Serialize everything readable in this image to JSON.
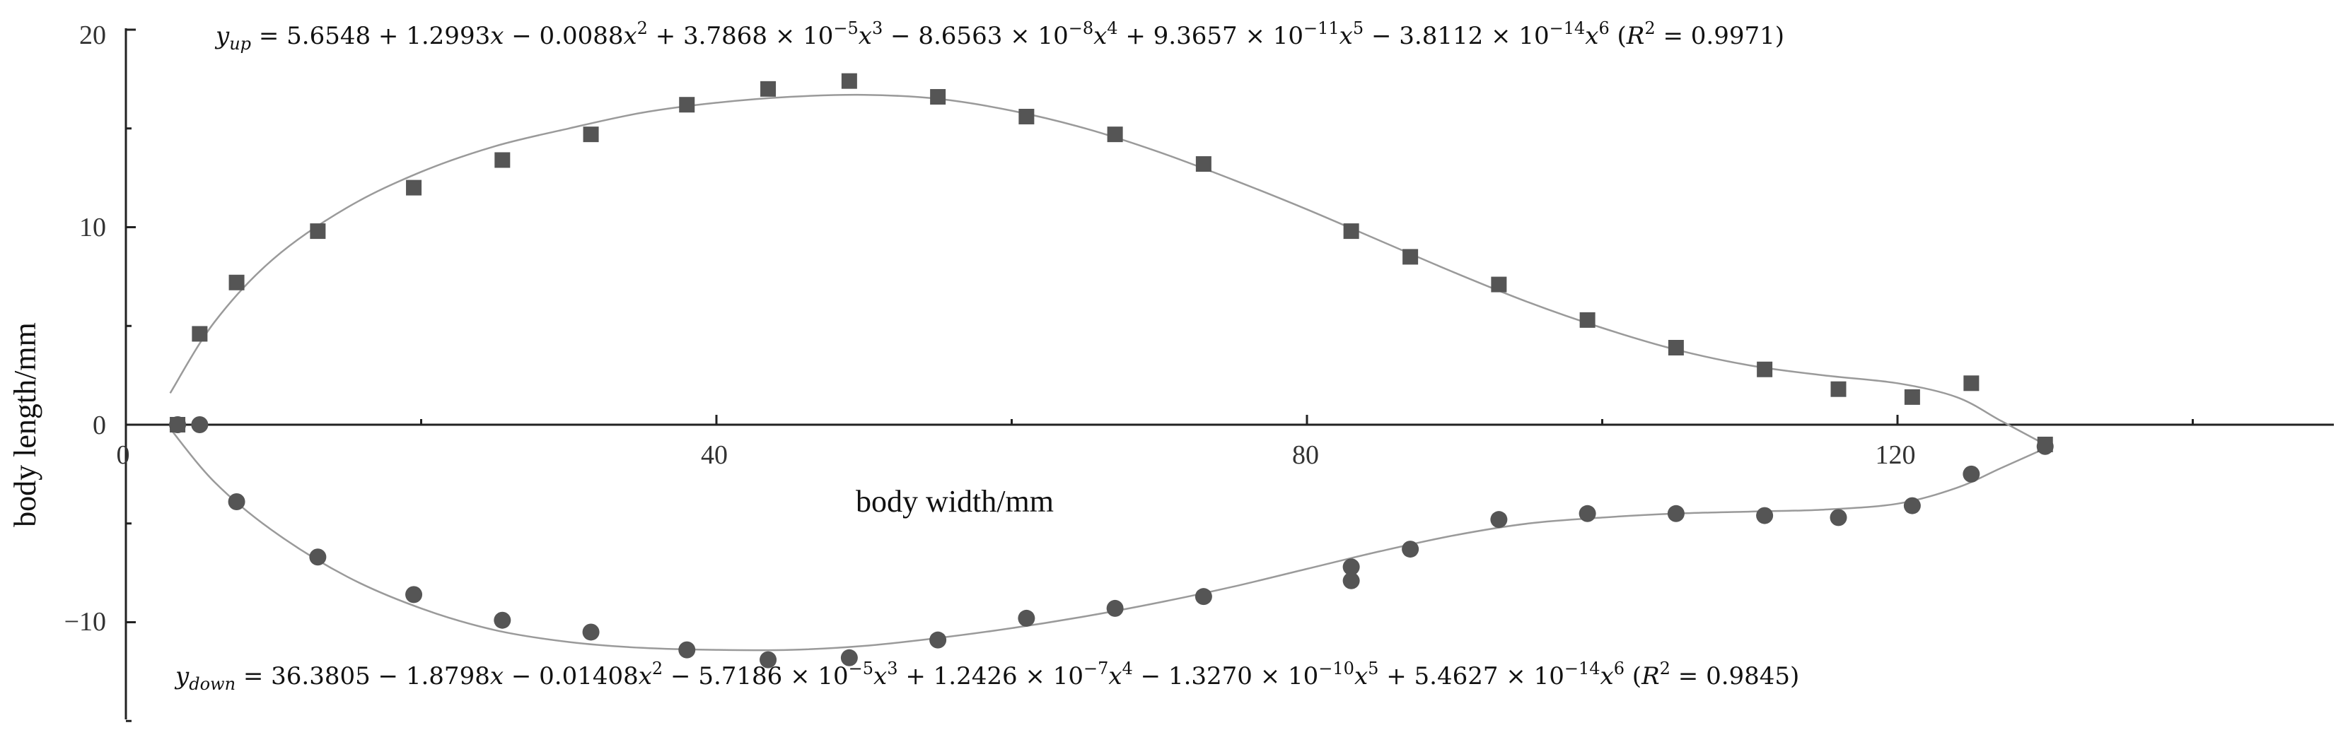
{
  "chart_data": {
    "type": "scatter",
    "title": "",
    "xlabel": "body width/mm",
    "ylabel": "body length/mm",
    "xlim": [
      0,
      150
    ],
    "ylim": [
      -15,
      20
    ],
    "x_ticks": [
      "0",
      "40",
      "80",
      "120"
    ],
    "y_ticks": [
      "20",
      "10",
      "0",
      "−10"
    ],
    "grid": false,
    "legend": "none",
    "series": [
      {
        "marker": "square",
        "color": "#555555",
        "points": [
          [
            3.5,
            0.0
          ],
          [
            5.0,
            4.6
          ],
          [
            7.5,
            7.2
          ],
          [
            13.0,
            9.8
          ],
          [
            19.5,
            12.0
          ],
          [
            25.5,
            13.4
          ],
          [
            31.5,
            14.7
          ],
          [
            38.0,
            16.2
          ],
          [
            43.5,
            17.0
          ],
          [
            49.0,
            17.4
          ],
          [
            55.0,
            16.6
          ],
          [
            61.0,
            15.6
          ],
          [
            67.0,
            14.7
          ],
          [
            73.0,
            13.2
          ],
          [
            83.0,
            9.8
          ],
          [
            87.0,
            8.5
          ],
          [
            93.0,
            7.1
          ],
          [
            99.0,
            5.3
          ],
          [
            105.0,
            3.9
          ],
          [
            111.0,
            2.8
          ],
          [
            116.0,
            1.8
          ],
          [
            121.0,
            1.4
          ],
          [
            125.0,
            2.1
          ],
          [
            130.0,
            -1.0
          ]
        ]
      },
      {
        "marker": "circle",
        "color": "#555555",
        "points": [
          [
            3.5,
            0.0
          ],
          [
            5.0,
            0.0
          ],
          [
            7.5,
            -3.9
          ],
          [
            13.0,
            -6.7
          ],
          [
            19.5,
            -8.6
          ],
          [
            25.5,
            -9.9
          ],
          [
            31.5,
            -10.5
          ],
          [
            38.0,
            -11.4
          ],
          [
            43.5,
            -11.9
          ],
          [
            49.0,
            -11.8
          ],
          [
            55.0,
            -10.9
          ],
          [
            61.0,
            -9.8
          ],
          [
            67.0,
            -9.3
          ],
          [
            73.0,
            -8.7
          ],
          [
            83.0,
            -7.2
          ],
          [
            83.0,
            -7.9
          ],
          [
            87.0,
            -6.3
          ],
          [
            93.0,
            -4.8
          ],
          [
            99.0,
            -4.5
          ],
          [
            105.0,
            -4.5
          ],
          [
            111.0,
            -4.6
          ],
          [
            116.0,
            -4.7
          ],
          [
            121.0,
            -4.1
          ],
          [
            125.0,
            -2.5
          ],
          [
            130.0,
            -1.1
          ]
        ]
      }
    ],
    "fit_curves": [
      {
        "color": "#9a9a9a",
        "points": [
          [
            3,
            1.6
          ],
          [
            6,
            5.2
          ],
          [
            10,
            8.4
          ],
          [
            15,
            11.0
          ],
          [
            20,
            12.8
          ],
          [
            25,
            14.1
          ],
          [
            30,
            15.0
          ],
          [
            35,
            15.8
          ],
          [
            40,
            16.3
          ],
          [
            45,
            16.6
          ],
          [
            50,
            16.7
          ],
          [
            55,
            16.5
          ],
          [
            60,
            15.9
          ],
          [
            65,
            15.0
          ],
          [
            70,
            13.8
          ],
          [
            75,
            12.4
          ],
          [
            80,
            10.9
          ],
          [
            85,
            9.3
          ],
          [
            90,
            7.7
          ],
          [
            95,
            6.2
          ],
          [
            100,
            4.9
          ],
          [
            105,
            3.8
          ],
          [
            110,
            3.0
          ],
          [
            115,
            2.5
          ],
          [
            120,
            2.1
          ],
          [
            124,
            1.4
          ],
          [
            127,
            0.2
          ],
          [
            130,
            -1.0
          ]
        ]
      },
      {
        "color": "#9a9a9a",
        "points": [
          [
            3,
            -0.2
          ],
          [
            6,
            -2.9
          ],
          [
            10,
            -5.4
          ],
          [
            15,
            -7.7
          ],
          [
            20,
            -9.3
          ],
          [
            25,
            -10.4
          ],
          [
            30,
            -11.0
          ],
          [
            35,
            -11.3
          ],
          [
            40,
            -11.4
          ],
          [
            45,
            -11.4
          ],
          [
            50,
            -11.2
          ],
          [
            55,
            -10.8
          ],
          [
            60,
            -10.3
          ],
          [
            65,
            -9.7
          ],
          [
            70,
            -9.0
          ],
          [
            75,
            -8.2
          ],
          [
            80,
            -7.3
          ],
          [
            85,
            -6.4
          ],
          [
            90,
            -5.6
          ],
          [
            95,
            -5.0
          ],
          [
            100,
            -4.7
          ],
          [
            105,
            -4.5
          ],
          [
            110,
            -4.4
          ],
          [
            115,
            -4.3
          ],
          [
            120,
            -4.0
          ],
          [
            124,
            -3.2
          ],
          [
            127,
            -2.2
          ],
          [
            130,
            -1.2
          ]
        ]
      }
    ]
  },
  "equations": {
    "upper": {
      "lhs": "y",
      "lhs_sub": "up",
      "c0": "5.6548",
      "c1": "1.2993",
      "c2": "0.0088",
      "c3": "3.7868",
      "e3": "−5",
      "c4": "8.6563",
      "e4": "−8",
      "c5": "9.3657",
      "e5": "−11",
      "c6": "3.8112",
      "e6": "−14",
      "r2": "0.9971"
    },
    "lower": {
      "lhs": "y",
      "lhs_sub": "down",
      "c0": "36.3805",
      "c1": "1.8798",
      "c2": "0.01408",
      "c3": "5.7186",
      "e3": "−5",
      "c4": "1.2426",
      "e4": "−7",
      "c5": "1.3270",
      "e5": "−10",
      "c6": "5.4627",
      "e6": "−14",
      "r2": "0.9845"
    }
  }
}
